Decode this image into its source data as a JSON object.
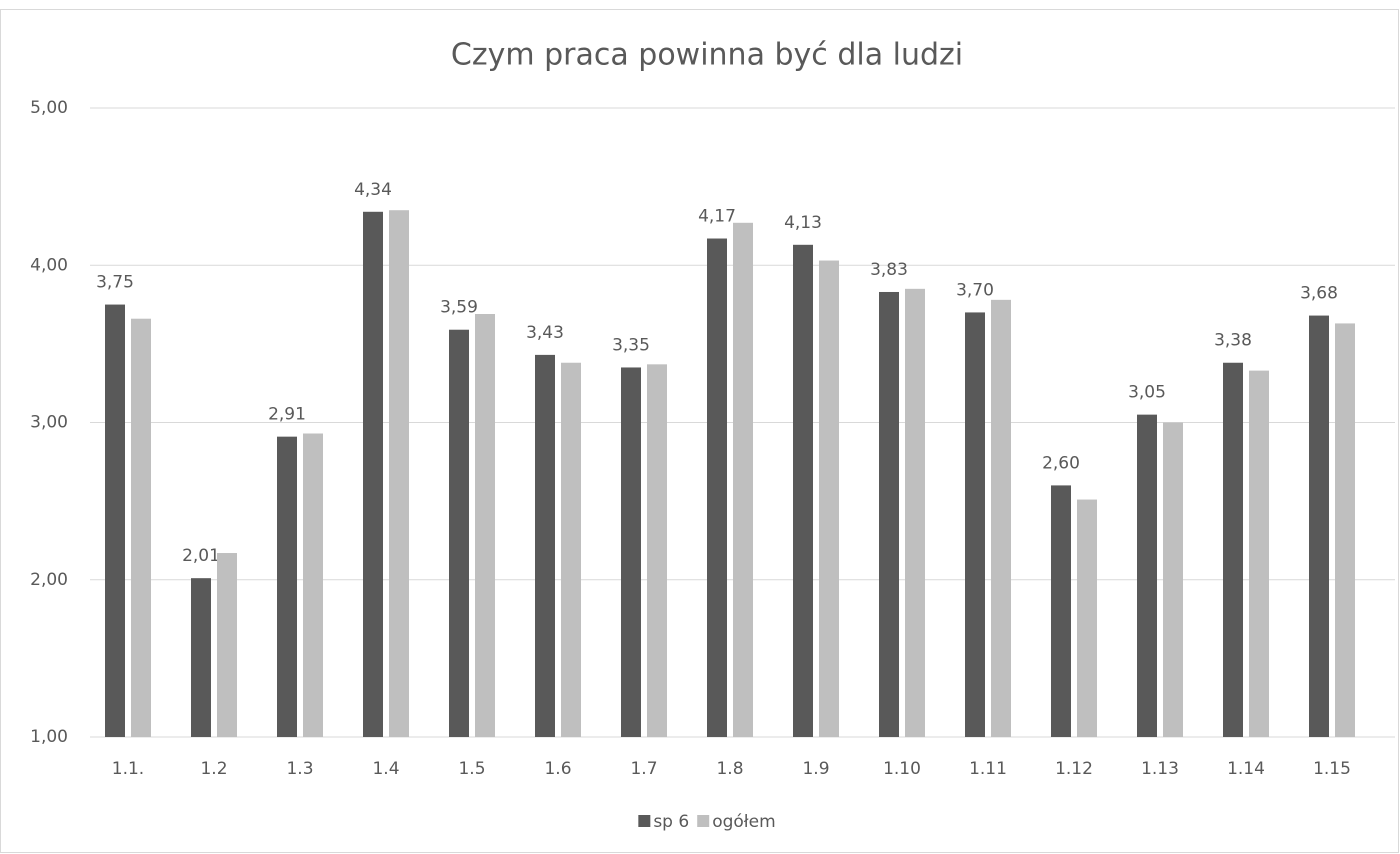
{
  "chart_data": {
    "type": "bar",
    "title": "Czym praca powinna być dla ludzi",
    "categories": [
      "1.1.",
      "1.2",
      "1.3",
      "1.4",
      "1.5",
      "1.6",
      "1.7",
      "1.8",
      "1.9",
      "1.10",
      "1.11",
      "1.12",
      "1.13",
      "1.14",
      "1.15"
    ],
    "series": [
      {
        "name": "sp 6",
        "color": "#595959",
        "values": [
          3.75,
          2.01,
          2.91,
          4.34,
          3.59,
          3.43,
          3.35,
          4.17,
          4.13,
          3.83,
          3.7,
          2.6,
          3.05,
          3.38,
          3.68
        ],
        "value_labels": [
          "3,75",
          "2,01",
          "2,91",
          "4,34",
          "3,59",
          "3,43",
          "3,35",
          "4,17",
          "4,13",
          "3,83",
          "3,70",
          "2,60",
          "3,05",
          "3,38",
          "3,68"
        ]
      },
      {
        "name": "ogółem",
        "color": "#bfbfbf",
        "values": [
          3.66,
          2.17,
          2.93,
          4.35,
          3.69,
          3.38,
          3.37,
          4.27,
          4.03,
          3.85,
          3.78,
          2.51,
          3.0,
          3.33,
          3.63
        ]
      }
    ],
    "ylim": [
      1,
      5
    ],
    "yticks": [
      {
        "value": 1,
        "label": "1,00"
      },
      {
        "value": 2,
        "label": "2,00"
      },
      {
        "value": 3,
        "label": "3,00"
      },
      {
        "value": 4,
        "label": "4,00"
      },
      {
        "value": 5,
        "label": "5,00"
      }
    ],
    "grid": true,
    "legend": "bottom"
  }
}
